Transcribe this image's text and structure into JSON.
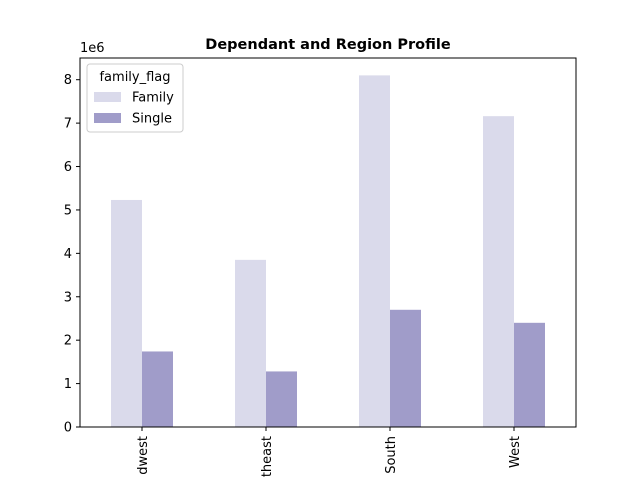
{
  "chart_data": {
    "type": "bar",
    "title": "Dependant and Region Profile",
    "y_offset_label": "1e6",
    "xlabel": "",
    "ylabel": "",
    "categories": [
      "Midwest",
      "Northeast",
      "South",
      "West"
    ],
    "category_tick_labels": [
      "dwest",
      "theast",
      "South",
      "West"
    ],
    "series": [
      {
        "name": "Family",
        "color": "#dadaeb",
        "values": [
          5230000,
          3850000,
          8100000,
          7160000
        ]
      },
      {
        "name": "Single",
        "color": "#a09cc9",
        "values": [
          1740000,
          1280000,
          2700000,
          2400000
        ]
      }
    ],
    "ylim": [
      0,
      8500000
    ],
    "y_ticks": [
      0,
      1000000,
      2000000,
      3000000,
      4000000,
      5000000,
      6000000,
      7000000,
      8000000
    ],
    "y_tick_labels": [
      "0",
      "1",
      "2",
      "3",
      "4",
      "5",
      "6",
      "7",
      "8"
    ],
    "legend": {
      "title": "family_flag",
      "placement": "top-left"
    },
    "grid": false
  }
}
